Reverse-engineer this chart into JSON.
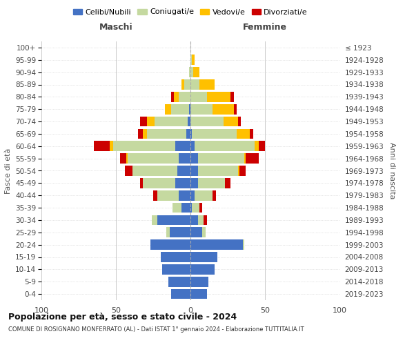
{
  "age_groups": [
    "0-4",
    "5-9",
    "10-14",
    "15-19",
    "20-24",
    "25-29",
    "30-34",
    "35-39",
    "40-44",
    "45-49",
    "50-54",
    "55-59",
    "60-64",
    "65-69",
    "70-74",
    "75-79",
    "80-84",
    "85-89",
    "90-94",
    "95-99",
    "100+"
  ],
  "birth_years": [
    "2019-2023",
    "2014-2018",
    "2009-2013",
    "2004-2008",
    "1999-2003",
    "1994-1998",
    "1989-1993",
    "1984-1988",
    "1979-1983",
    "1974-1978",
    "1969-1973",
    "1964-1968",
    "1959-1963",
    "1954-1958",
    "1949-1953",
    "1944-1948",
    "1939-1943",
    "1934-1938",
    "1929-1933",
    "1924-1928",
    "≤ 1923"
  ],
  "colors": {
    "celibi": "#4472c4",
    "coniugati": "#c5d9a0",
    "vedovi": "#ffc000",
    "divorziati": "#cc0000"
  },
  "males": {
    "celibi": [
      13,
      15,
      19,
      20,
      27,
      14,
      22,
      6,
      8,
      10,
      9,
      8,
      10,
      3,
      2,
      1,
      0,
      0,
      0,
      0,
      0
    ],
    "coniugati": [
      0,
      0,
      0,
      0,
      0,
      2,
      4,
      6,
      14,
      22,
      30,
      34,
      42,
      26,
      22,
      12,
      8,
      4,
      1,
      0,
      0
    ],
    "vedovi": [
      0,
      0,
      0,
      0,
      0,
      0,
      0,
      0,
      0,
      0,
      0,
      1,
      2,
      3,
      5,
      4,
      3,
      2,
      0,
      0,
      0
    ],
    "divorziati": [
      0,
      0,
      0,
      0,
      0,
      0,
      0,
      0,
      3,
      2,
      5,
      4,
      11,
      3,
      5,
      0,
      2,
      0,
      0,
      0,
      0
    ]
  },
  "females": {
    "nubili": [
      11,
      12,
      16,
      18,
      35,
      8,
      5,
      1,
      3,
      5,
      5,
      5,
      3,
      1,
      0,
      0,
      0,
      0,
      0,
      0,
      0
    ],
    "coniugate": [
      0,
      0,
      0,
      0,
      1,
      2,
      4,
      5,
      12,
      18,
      27,
      31,
      40,
      30,
      22,
      15,
      11,
      6,
      2,
      1,
      0
    ],
    "vedove": [
      0,
      0,
      0,
      0,
      0,
      0,
      0,
      0,
      0,
      0,
      1,
      1,
      3,
      9,
      10,
      14,
      16,
      10,
      4,
      2,
      0
    ],
    "divorziate": [
      0,
      0,
      0,
      0,
      0,
      0,
      2,
      2,
      2,
      4,
      4,
      9,
      4,
      2,
      2,
      2,
      2,
      0,
      0,
      0,
      0
    ]
  },
  "title": "Popolazione per età, sesso e stato civile - 2024",
  "subtitle": "COMUNE DI ROSIGNANO MONFERRATO (AL) - Dati ISTAT 1° gennaio 2024 - Elaborazione TUTTITALIA.IT",
  "xlabel_left": "Maschi",
  "xlabel_right": "Femmine",
  "ylabel_left": "Fasce di età",
  "ylabel_right": "Anni di nascita",
  "xlim": 100,
  "bg_color": "#ffffff",
  "grid_color": "#cccccc",
  "bar_height": 0.82
}
